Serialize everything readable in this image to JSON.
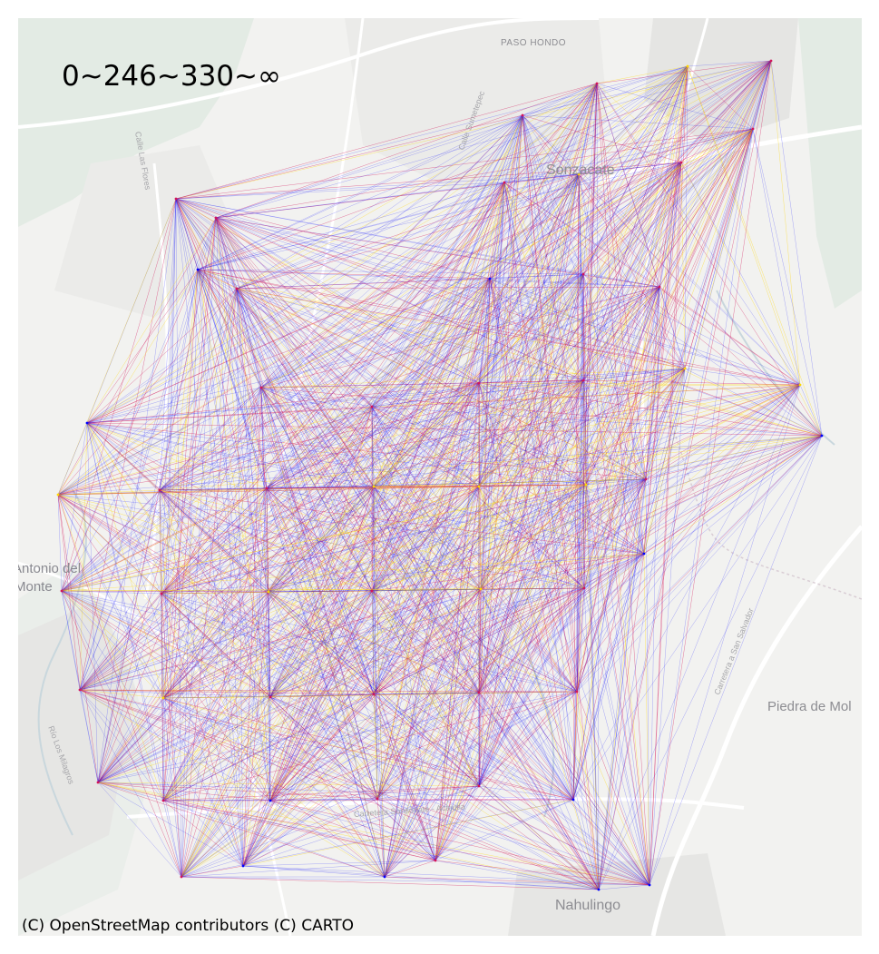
{
  "legend": {
    "title": "0~246~330~∞"
  },
  "attribution": "(C) OpenStreetMap contributors (C) CARTO",
  "basemap": {
    "places": [
      {
        "name": "PASO HONDO",
        "type": "small"
      },
      {
        "name": "Sonzacate",
        "type": "large"
      },
      {
        "name": "Antonio del",
        "type": "medium"
      },
      {
        "name": "Monte",
        "type": "medium"
      },
      {
        "name": "Piedra de Mol",
        "type": "medium"
      },
      {
        "name": "Nahulingo",
        "type": "large"
      }
    ],
    "streets": [
      {
        "name": "Carretera a San Salvador"
      },
      {
        "name": "Carretera Sonsonate - Acajutla"
      },
      {
        "name": "Río Los Milagros"
      },
      {
        "name": "Calle Sumetepec"
      },
      {
        "name": "Calle Las Flores"
      }
    ]
  },
  "colors": {
    "low": "#0000ff",
    "mid": "#d4145a",
    "high": "#ffd700",
    "water": "#c8d6dc",
    "green": "#dde8df",
    "road": "#ffffff"
  },
  "network": {
    "description_legend_classes": [
      "0~246",
      "246~330",
      "330~∞"
    ],
    "nodes": [
      {
        "id": "n1",
        "level": "mid"
      },
      {
        "id": "n2",
        "level": "mid"
      },
      {
        "id": "n3",
        "level": "high"
      },
      {
        "id": "n4",
        "level": "mid"
      },
      {
        "id": "n5",
        "level": "mid"
      },
      {
        "id": "n6",
        "level": "mid"
      },
      {
        "id": "n7",
        "level": "high"
      },
      {
        "id": "n8",
        "level": "mid"
      },
      {
        "id": "n9",
        "level": "mid"
      },
      {
        "id": "n10",
        "level": "low"
      },
      {
        "id": "n11",
        "level": "mid"
      },
      {
        "id": "n12",
        "level": "low"
      },
      {
        "id": "n13",
        "level": "mid"
      },
      {
        "id": "n14",
        "level": "mid"
      },
      {
        "id": "n15",
        "level": "mid"
      },
      {
        "id": "n16",
        "level": "high"
      },
      {
        "id": "n17",
        "level": "low"
      },
      {
        "id": "n18",
        "level": "mid"
      },
      {
        "id": "n19",
        "level": "low"
      },
      {
        "id": "n20",
        "level": "mid"
      },
      {
        "id": "n21",
        "level": "mid"
      },
      {
        "id": "n22",
        "level": "mid"
      },
      {
        "id": "n23",
        "level": "high"
      },
      {
        "id": "n24",
        "level": "high"
      },
      {
        "id": "n25",
        "level": "mid"
      },
      {
        "id": "n26",
        "level": "mid"
      },
      {
        "id": "n27",
        "level": "high"
      },
      {
        "id": "n28",
        "level": "high"
      },
      {
        "id": "n29",
        "level": "high"
      },
      {
        "id": "n30",
        "level": "mid"
      },
      {
        "id": "n31",
        "level": "low"
      },
      {
        "id": "n32",
        "level": "mid"
      },
      {
        "id": "n33",
        "level": "mid"
      },
      {
        "id": "n34",
        "level": "high"
      },
      {
        "id": "n35",
        "level": "mid"
      },
      {
        "id": "n36",
        "level": "high"
      },
      {
        "id": "n37",
        "level": "mid"
      },
      {
        "id": "n38",
        "level": "mid"
      },
      {
        "id": "n39",
        "level": "high"
      },
      {
        "id": "n40",
        "level": "mid"
      },
      {
        "id": "n41",
        "level": "mid"
      },
      {
        "id": "n42",
        "level": "mid"
      },
      {
        "id": "n43",
        "level": "mid"
      },
      {
        "id": "n44",
        "level": "mid"
      },
      {
        "id": "n45",
        "level": "mid"
      },
      {
        "id": "n46",
        "level": "low"
      },
      {
        "id": "n47",
        "level": "mid"
      },
      {
        "id": "n48",
        "level": "mid"
      },
      {
        "id": "n49",
        "level": "low"
      },
      {
        "id": "n50",
        "level": "mid"
      },
      {
        "id": "n51",
        "level": "low"
      },
      {
        "id": "n52",
        "level": "low"
      },
      {
        "id": "n53",
        "level": "mid"
      },
      {
        "id": "n54",
        "level": "low"
      },
      {
        "id": "n55",
        "level": "low"
      }
    ]
  }
}
